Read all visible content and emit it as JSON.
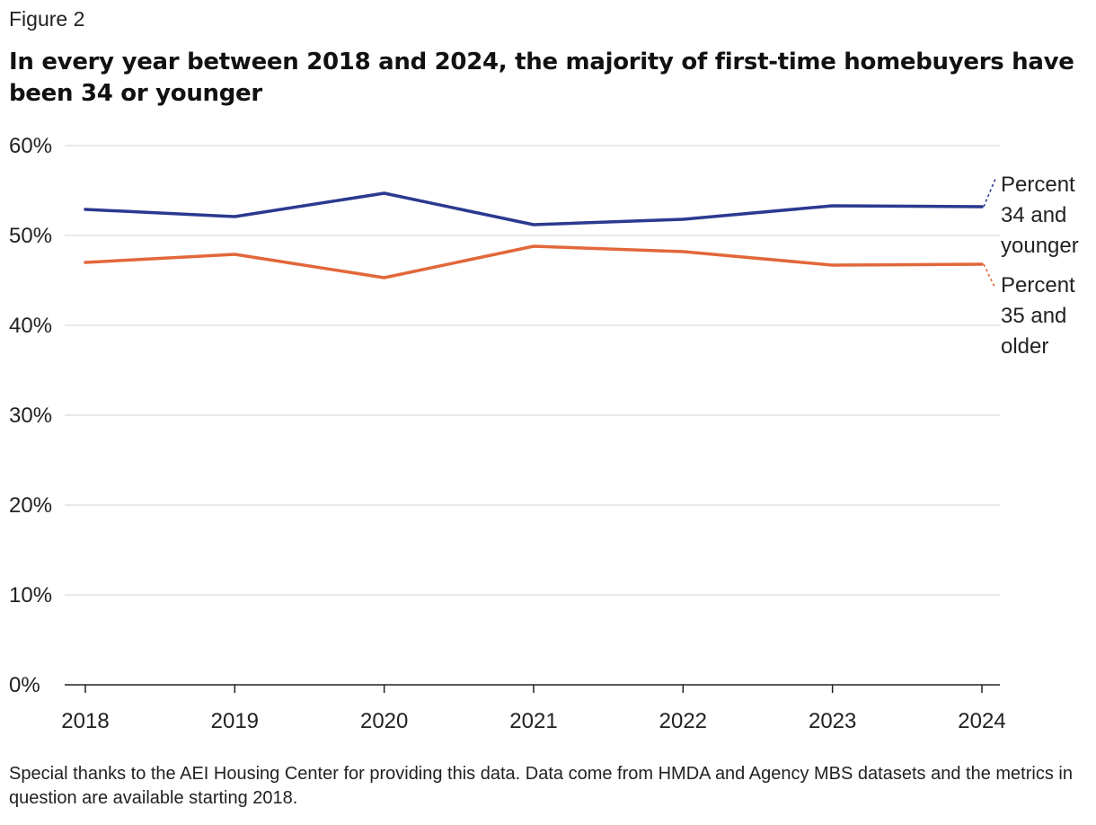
{
  "figure_label": "Figure 2",
  "chart_data": {
    "type": "line",
    "title": "In every year between 2018 and 2024, the majority of first-time homebuyers have been 34 or younger",
    "x": [
      "2018",
      "2019",
      "2020",
      "2021",
      "2022",
      "2023",
      "2024"
    ],
    "series": [
      {
        "name": "Percent 34 and younger",
        "label_lines": [
          "Percent",
          "34 and",
          "younger"
        ],
        "color": "#2b3990",
        "values": [
          52.9,
          52.1,
          54.7,
          51.2,
          51.8,
          53.3,
          53.2
        ]
      },
      {
        "name": "Percent 35 and older",
        "label_lines": [
          "Percent",
          "35 and",
          "older"
        ],
        "color": "#e2673a",
        "values": [
          47.0,
          47.9,
          45.3,
          48.8,
          48.2,
          46.7,
          46.8
        ]
      }
    ],
    "ylim": [
      0,
      60
    ],
    "yticks": [
      "0%",
      "10%",
      "20%",
      "30%",
      "40%",
      "50%",
      "60%"
    ],
    "ytick_values": [
      0,
      10,
      20,
      30,
      40,
      50,
      60
    ],
    "xlabel": "",
    "ylabel": "",
    "grid": "horizontal",
    "legend": "direct labels at right end of lines"
  },
  "note": "Special thanks to the AEI Housing Center for providing this data. Data come from HMDA and Agency MBS datasets and the metrics in question are available starting 2018."
}
